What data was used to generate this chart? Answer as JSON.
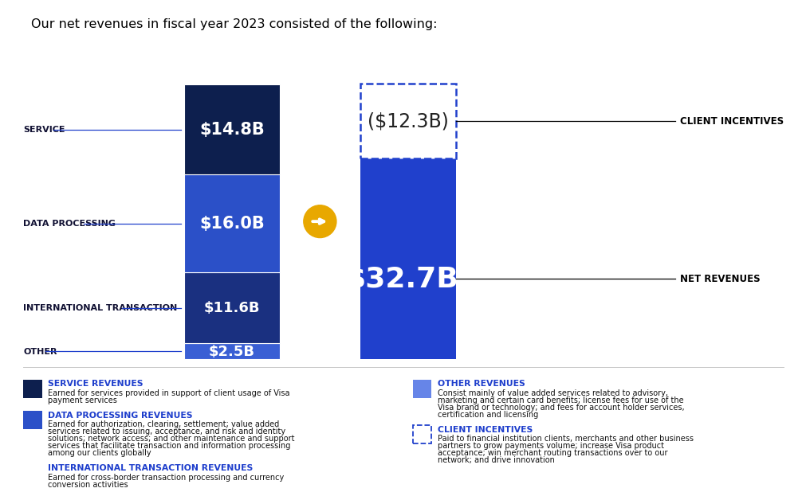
{
  "title": "Our net revenues in fiscal year 2023 consisted of the following:",
  "bar1_segments": [
    {
      "label": "SERVICE",
      "value": 14.8,
      "color": "#0d1f4e",
      "text": "$14.8B"
    },
    {
      "label": "DATA PROCESSING",
      "value": 16.0,
      "color": "#2b50c8",
      "text": "$16.0B"
    },
    {
      "label": "INTERNATIONAL TRANSACTION",
      "value": 11.6,
      "color": "#1a3080",
      "text": "$11.6B"
    },
    {
      "label": "OTHER",
      "value": 2.5,
      "color": "#3a5fd4",
      "text": "$2.5B"
    }
  ],
  "bar2_net": {
    "value": 32.7,
    "color": "#2040cc",
    "text": "$32.7B¹"
  },
  "bar2_incentive": {
    "value": 12.3,
    "text": "($12.3B)",
    "border_color": "#2040cc"
  },
  "net_revenues_label": "NET REVENUES",
  "client_incentives_label": "CLIENT INCENTIVES",
  "legend_items": [
    {
      "color": "#0d1f4e",
      "title": "SERVICE REVENUES",
      "desc": "Earned for services provided in support of client usage of Visa\npayment services"
    },
    {
      "color": "#2b50c8",
      "title": "DATA PROCESSING REVENUES",
      "desc": "Earned for authorization, clearing, settlement; value added\nservices related to issuing, acceptance, and risk and identity\nsolutions; network access; and other maintenance and support\nservices that facilitate transaction and information processing\namong our clients globally"
    },
    {
      "color": "#1a3080",
      "title": "INTERNATIONAL TRANSACTION REVENUES",
      "desc": "Earned for cross-border transaction processing and currency\nconversion activities"
    },
    {
      "color": "#6685e8",
      "title": "OTHER REVENUES",
      "desc": "Consist mainly of value added services related to advisory,\nmarketing and certain card benefits; license fees for use of the\nVisa brand or technology; and fees for account holder services,\ncertification and licensing"
    },
    {
      "color": "dashed",
      "title": "CLIENT INCENTIVES",
      "desc": "Paid to financial institution clients, merchants and other business\npartners to grow payments volume; increase Visa product\nacceptance; win merchant routing transactions over to our\nnetwork; and drive innovation"
    }
  ],
  "medium_blue": "#2040cc",
  "arrow_color": "#e8a800",
  "label_color": "#111133",
  "heading_blue": "#1e3ecc",
  "line_color": "#2040cc"
}
